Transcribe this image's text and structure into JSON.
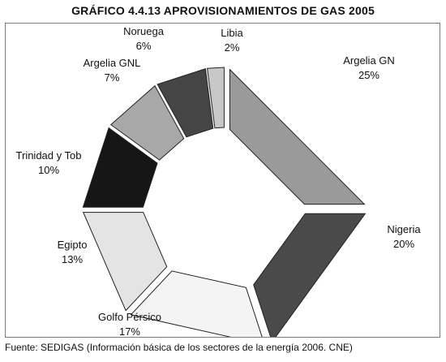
{
  "chart_data": {
    "type": "pie",
    "title": "GRÁFICO 4.4.13 APROVISIONAMIENTOS DE GAS 2005",
    "style": "exploded donut",
    "slices": [
      {
        "label": "Argelia GN",
        "value": 25,
        "value_label": "25%",
        "color": "#9a9a9a"
      },
      {
        "label": "Nigeria",
        "value": 20,
        "value_label": "20%",
        "color": "#4a4a4a"
      },
      {
        "label": "Golfo Pérsico",
        "value": 17,
        "value_label": "17%",
        "color": "#f4f4f4"
      },
      {
        "label": "Egipto",
        "value": 13,
        "value_label": "13%",
        "color": "#e4e4e4"
      },
      {
        "label": "Trinidad y Tob",
        "value": 10,
        "value_label": "10%",
        "color": "#161616"
      },
      {
        "label": "Argelia GNL",
        "value": 7,
        "value_label": "7%",
        "color": "#a8a8a8"
      },
      {
        "label": "Noruega",
        "value": 6,
        "value_label": "6%",
        "color": "#454545"
      },
      {
        "label": "Libia",
        "value": 2,
        "value_label": "2%",
        "color": "#c8c8c8"
      }
    ]
  },
  "source": "Fuente: SEDIGAS (Información básica de los sectores de la energía 2006. CNE)"
}
